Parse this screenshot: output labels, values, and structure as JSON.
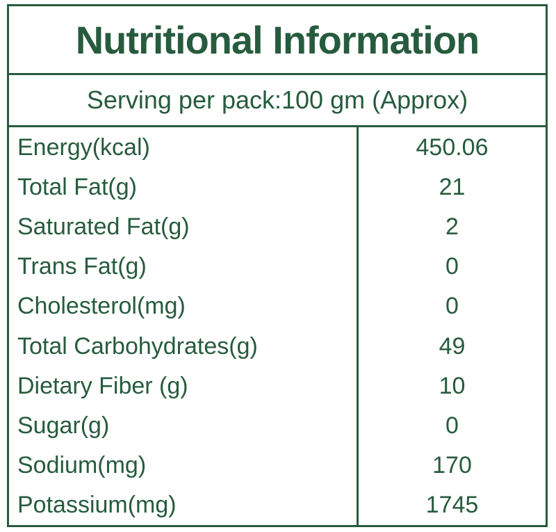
{
  "label": {
    "title": "Nutritional Information",
    "serving_line": "Serving per pack:100 gm (Approx)",
    "colors": {
      "accent_green": "#275b3e",
      "background": "#ffffff"
    },
    "table": {
      "rows": [
        {
          "name": "Energy(kcal)",
          "value": "450.06"
        },
        {
          "name": "Total Fat(g)",
          "value": "21"
        },
        {
          "name": "Saturated Fat(g)",
          "value": "2"
        },
        {
          "name": "Trans Fat(g)",
          "value": "0"
        },
        {
          "name": "Cholesterol(mg)",
          "value": "0"
        },
        {
          "name": "Total Carbohydrates(g)",
          "value": "49"
        },
        {
          "name": "Dietary Fiber (g)",
          "value": "10"
        },
        {
          "name": "Sugar(g)",
          "value": "0"
        },
        {
          "name": "Sodium(mg)",
          "value": "170"
        },
        {
          "name": "Potassium(mg)",
          "value": "1745"
        }
      ]
    }
  }
}
